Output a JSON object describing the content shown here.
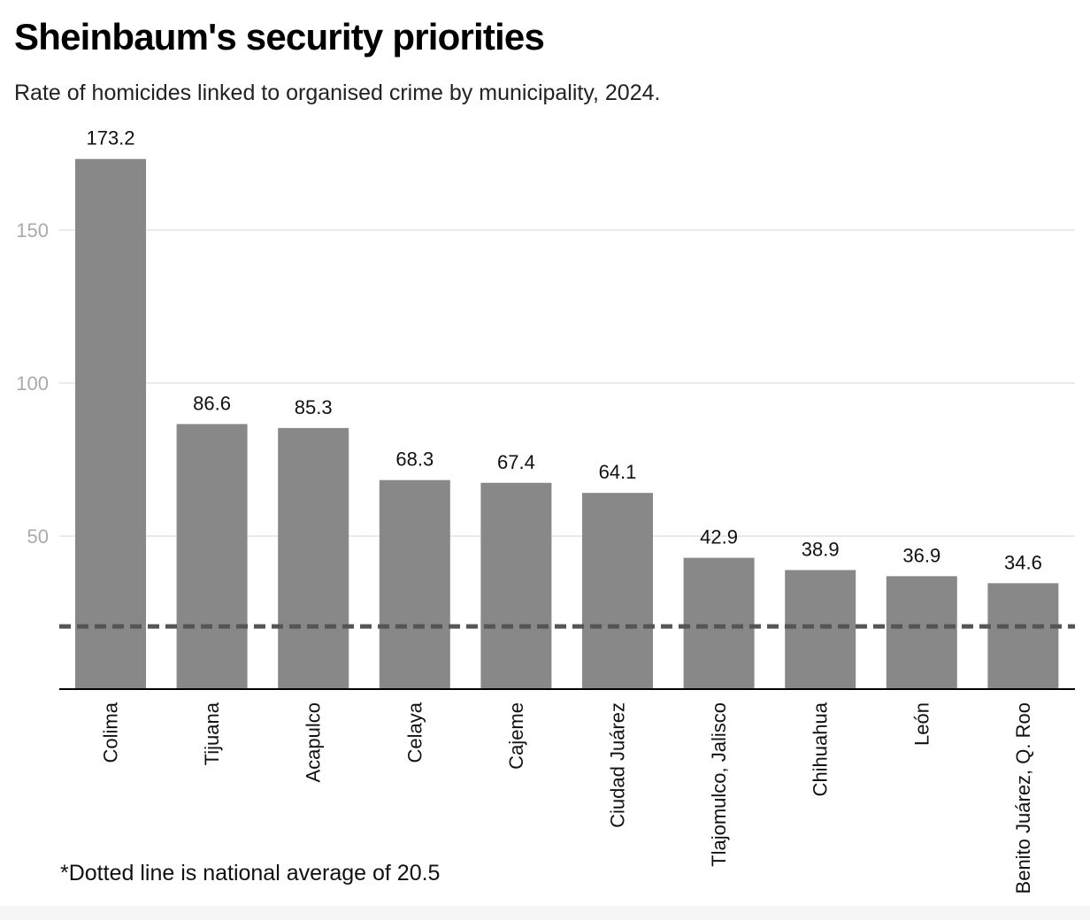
{
  "chart_data": {
    "type": "bar",
    "title": "Sheinbaum's security priorities",
    "subtitle": "Rate of homicides linked to organised crime by municipality, 2024.",
    "categories": [
      "Colima",
      "Tijuana",
      "Acapulco",
      "Celaya",
      "Cajeme",
      "Ciudad Juárez",
      "Tlajomulco, Jalisco",
      "Chihuahua",
      "León",
      "Benito Juárez, Q. Roo"
    ],
    "values": [
      173.2,
      86.6,
      85.3,
      68.3,
      67.4,
      64.1,
      42.9,
      38.9,
      36.9,
      34.6
    ],
    "value_labels": [
      "173.2",
      "86.6",
      "85.3",
      "68.3",
      "67.4",
      "64.1",
      "42.9",
      "38.9",
      "36.9",
      "34.6"
    ],
    "y_ticks": [
      50,
      100,
      150
    ],
    "ylim": [
      0,
      173.2
    ],
    "grid": true,
    "bar_color": "#888888",
    "reference_line": {
      "value": 20.5,
      "style": "dashed",
      "color": "#555555"
    },
    "footnote": "*Dotted line is national average of 20.5"
  }
}
